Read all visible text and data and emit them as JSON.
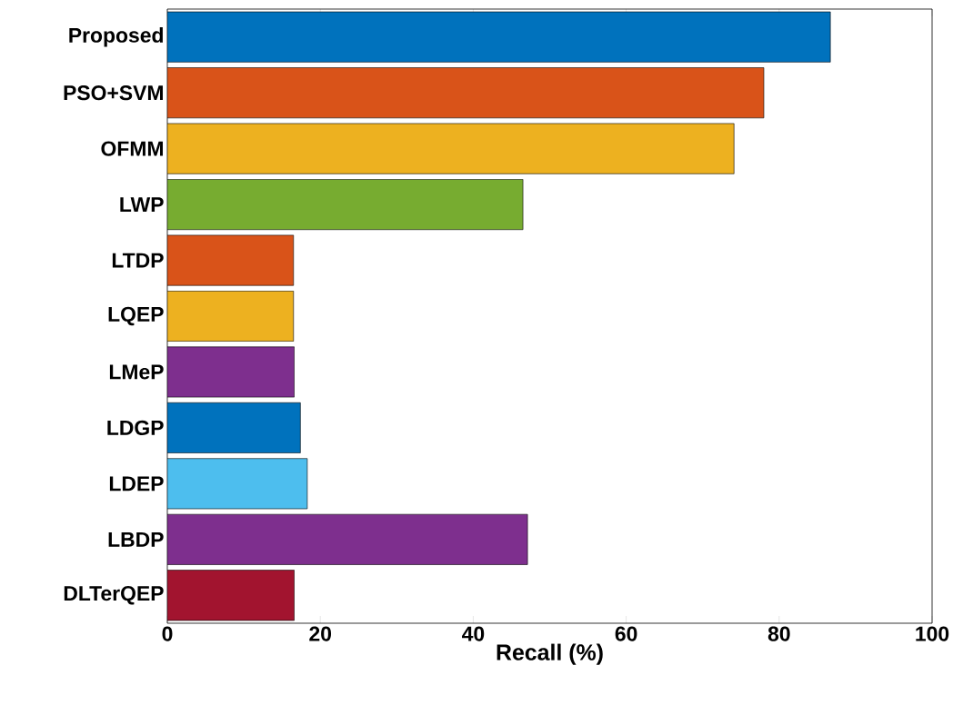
{
  "chart_data": {
    "type": "bar",
    "orientation": "horizontal",
    "xlabel": "Recall (%)",
    "categories": [
      "Proposed",
      "PSO+SVM",
      "OFMM",
      "LWP",
      "LTDP",
      "LQEP",
      "LMeP",
      "LDGP",
      "LDEP",
      "LBDP",
      "DLTerQEP"
    ],
    "values": [
      86.7,
      78.0,
      74.1,
      46.5,
      16.5,
      16.5,
      16.6,
      17.4,
      18.3,
      47.1,
      16.6
    ],
    "colors": [
      "#0072bd",
      "#d95319",
      "#edb120",
      "#77ac30",
      "#d95319",
      "#edb120",
      "#7e2f8e",
      "#0072bd",
      "#4dbeee",
      "#7e2f8e",
      "#a2142f"
    ],
    "xlim": [
      0,
      100
    ],
    "xticks": [
      0,
      20,
      40,
      60,
      80,
      100
    ],
    "grid": false
  }
}
